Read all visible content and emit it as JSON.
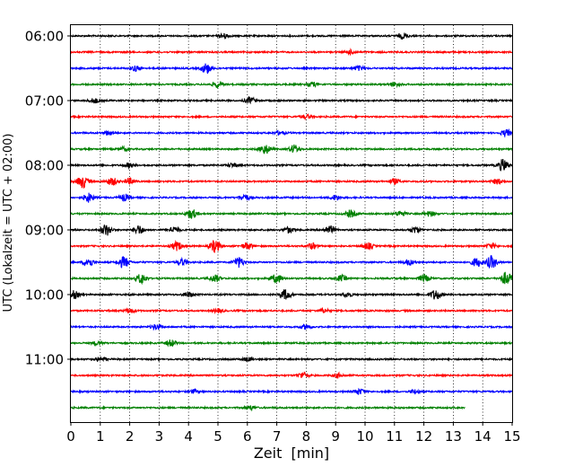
{
  "chart_data": {
    "type": "line",
    "xlabel": "Zeit  [min]",
    "ylabel": "UTC (Lokalzeit = UTC + 02:00)",
    "xlim": [
      0,
      15
    ],
    "x_ticks": [
      0,
      1,
      2,
      3,
      4,
      5,
      6,
      7,
      8,
      9,
      10,
      11,
      12,
      13,
      14,
      15
    ],
    "x_tick_labels": [
      "0",
      "1",
      "2",
      "3",
      "4",
      "5",
      "6",
      "7",
      "8",
      "9",
      "10",
      "11",
      "12",
      "13",
      "14",
      "15"
    ],
    "grid": "vertical-dotted",
    "trace_interval_minutes": 15,
    "y_tick_labels": [
      "06:00",
      "07:00",
      "08:00",
      "09:00",
      "10:00",
      "11:00"
    ],
    "color_cycle": [
      "#000000",
      "#ff0000",
      "#0000ff",
      "#008000"
    ],
    "rows": [
      {
        "start": "06:00",
        "color": "#000000",
        "end_min": 15,
        "events": [
          [
            11.3,
            0.45
          ],
          [
            5.2,
            0.35
          ]
        ]
      },
      {
        "start": "06:15",
        "color": "#ff0000",
        "end_min": 15,
        "events": [
          [
            9.5,
            0.3
          ]
        ]
      },
      {
        "start": "06:30",
        "color": "#0000ff",
        "end_min": 15,
        "events": [
          [
            4.6,
            0.8
          ],
          [
            2.2,
            0.4
          ],
          [
            9.8,
            0.35
          ]
        ]
      },
      {
        "start": "06:45",
        "color": "#008000",
        "end_min": 15,
        "events": [
          [
            5.0,
            0.5
          ],
          [
            8.2,
            0.35
          ],
          [
            11.0,
            0.35
          ]
        ]
      },
      {
        "start": "07:00",
        "color": "#000000",
        "end_min": 15,
        "events": [
          [
            6.1,
            0.5
          ],
          [
            0.8,
            0.35
          ]
        ]
      },
      {
        "start": "07:15",
        "color": "#ff0000",
        "end_min": 15,
        "events": [
          [
            8.0,
            0.3
          ]
        ]
      },
      {
        "start": "07:30",
        "color": "#0000ff",
        "end_min": 15,
        "events": [
          [
            14.8,
            0.5
          ],
          [
            1.3,
            0.35
          ],
          [
            7.1,
            0.3
          ]
        ]
      },
      {
        "start": "07:45",
        "color": "#008000",
        "end_min": 15,
        "events": [
          [
            6.6,
            0.75
          ],
          [
            7.6,
            0.65
          ],
          [
            1.8,
            0.3
          ]
        ]
      },
      {
        "start": "08:00",
        "color": "#000000",
        "end_min": 15,
        "events": [
          [
            14.7,
            0.95
          ],
          [
            2.0,
            0.35
          ],
          [
            5.5,
            0.3
          ]
        ]
      },
      {
        "start": "08:15",
        "color": "#ff0000",
        "end_min": 15,
        "events": [
          [
            0.4,
            1.0
          ],
          [
            1.4,
            0.6
          ],
          [
            2.0,
            0.45
          ],
          [
            11.0,
            0.4
          ],
          [
            14.5,
            0.4
          ]
        ]
      },
      {
        "start": "08:30",
        "color": "#0000ff",
        "end_min": 15,
        "events": [
          [
            0.6,
            0.7
          ],
          [
            1.8,
            0.5
          ],
          [
            5.9,
            0.5
          ],
          [
            9.0,
            0.4
          ]
        ]
      },
      {
        "start": "08:45",
        "color": "#008000",
        "end_min": 15,
        "events": [
          [
            4.1,
            0.75
          ],
          [
            9.5,
            0.55
          ],
          [
            11.2,
            0.45
          ],
          [
            12.2,
            0.4
          ]
        ]
      },
      {
        "start": "09:00",
        "color": "#000000",
        "end_min": 15,
        "events": [
          [
            1.2,
            0.9
          ],
          [
            2.3,
            0.7
          ],
          [
            8.8,
            0.6
          ],
          [
            3.5,
            0.5
          ],
          [
            7.4,
            0.45
          ],
          [
            11.7,
            0.45
          ]
        ]
      },
      {
        "start": "09:15",
        "color": "#ff0000",
        "end_min": 15,
        "events": [
          [
            4.9,
            0.95
          ],
          [
            3.6,
            0.7
          ],
          [
            6.0,
            0.55
          ],
          [
            10.1,
            0.5
          ],
          [
            8.2,
            0.45
          ],
          [
            14.3,
            0.4
          ]
        ]
      },
      {
        "start": "09:30",
        "color": "#0000ff",
        "end_min": 15,
        "events": [
          [
            1.8,
            0.9
          ],
          [
            14.3,
            1.0
          ],
          [
            0.6,
            0.7
          ],
          [
            5.7,
            0.8
          ],
          [
            13.8,
            0.7
          ],
          [
            3.8,
            0.5
          ],
          [
            11.5,
            0.45
          ]
        ]
      },
      {
        "start": "09:45",
        "color": "#008000",
        "end_min": 15,
        "events": [
          [
            14.8,
            1.0
          ],
          [
            2.4,
            0.8
          ],
          [
            7.0,
            0.7
          ],
          [
            4.9,
            0.55
          ],
          [
            12.0,
            0.55
          ],
          [
            9.2,
            0.45
          ]
        ]
      },
      {
        "start": "10:00",
        "color": "#000000",
        "end_min": 15,
        "events": [
          [
            7.3,
            0.8
          ],
          [
            12.4,
            0.8
          ],
          [
            0.1,
            0.6
          ],
          [
            4.0,
            0.4
          ],
          [
            9.4,
            0.35
          ]
        ]
      },
      {
        "start": "10:15",
        "color": "#ff0000",
        "end_min": 15,
        "events": [
          [
            2.0,
            0.35
          ],
          [
            5.0,
            0.3
          ],
          [
            8.6,
            0.3
          ]
        ]
      },
      {
        "start": "10:30",
        "color": "#0000ff",
        "end_min": 15,
        "events": [
          [
            2.9,
            0.4
          ],
          [
            8.0,
            0.35
          ]
        ]
      },
      {
        "start": "10:45",
        "color": "#008000",
        "end_min": 15,
        "events": [
          [
            3.4,
            0.5
          ],
          [
            0.9,
            0.3
          ]
        ]
      },
      {
        "start": "11:00",
        "color": "#000000",
        "end_min": 15,
        "events": [
          [
            1.0,
            0.3
          ],
          [
            6.0,
            0.3
          ]
        ]
      },
      {
        "start": "11:15",
        "color": "#ff0000",
        "end_min": 15,
        "events": [
          [
            7.9,
            0.45
          ],
          [
            9.1,
            0.3
          ]
        ]
      },
      {
        "start": "11:30",
        "color": "#0000ff",
        "end_min": 15,
        "events": [
          [
            9.8,
            0.45
          ],
          [
            4.2,
            0.3
          ],
          [
            11.7,
            0.3
          ]
        ]
      },
      {
        "start": "11:45",
        "color": "#008000",
        "end_min": 13.4,
        "events": [
          [
            6.1,
            0.3
          ]
        ]
      }
    ]
  }
}
